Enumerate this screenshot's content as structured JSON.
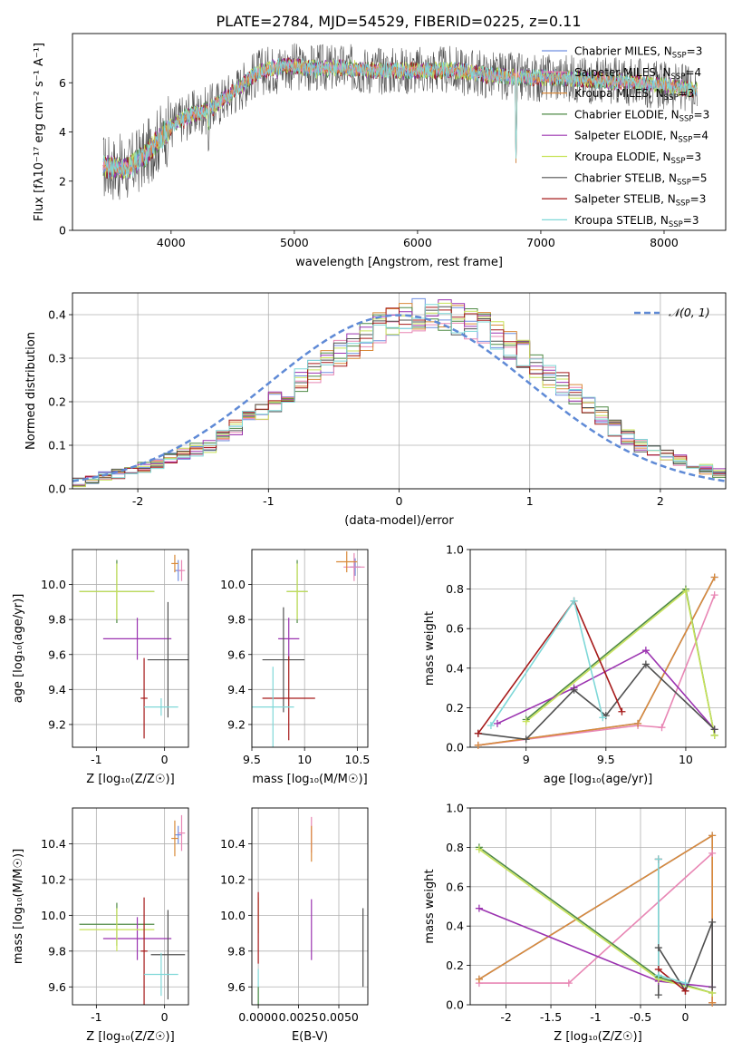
{
  "figure_title": "PLATE=2784, MJD=54529, FIBERID=0225, z=0.11",
  "colors": {
    "Chabrier MILES": "#6f8fe0",
    "Salpeter MILES": "#e886b4",
    "Kroupa MILES": "#d98a3a",
    "Chabrier ELODIE": "#4f8a45",
    "Salpeter ELODIE": "#9b33b0",
    "Kroupa ELODIE": "#c8e35a",
    "Chabrier STELIB": "#505050",
    "Salpeter STELIB": "#a61a1a",
    "Kroupa STELIB": "#7fd8d8",
    "normal": "#5f8ad6"
  },
  "chart_data": [
    {
      "id": "spectrum",
      "type": "line",
      "title": "PLATE=2784, MJD=54529, FIBERID=0225, z=0.11",
      "xlabel": "wavelength [Angstrom, rest frame]",
      "ylabel": "Flux [fλ10⁻¹⁷ erg cm⁻² s⁻¹ A⁻¹]",
      "xlim": [
        3200,
        8500
      ],
      "ylim": [
        0,
        8
      ],
      "xticks": [
        4000,
        5000,
        6000,
        7000,
        8000
      ],
      "yticks": [
        0,
        2,
        4,
        6
      ],
      "grid": false,
      "legend_position": "upper-right",
      "x_range_data": [
        3450,
        8270
      ],
      "continuum": [
        [
          3450,
          2.6
        ],
        [
          3650,
          2.5
        ],
        [
          3800,
          3.1
        ],
        [
          3950,
          4.0
        ],
        [
          4100,
          4.6
        ],
        [
          4300,
          4.9
        ],
        [
          4500,
          5.6
        ],
        [
          4700,
          6.4
        ],
        [
          4900,
          6.7
        ],
        [
          5100,
          6.6
        ],
        [
          5400,
          6.6
        ],
        [
          5700,
          6.5
        ],
        [
          6000,
          6.5
        ],
        [
          6300,
          6.5
        ],
        [
          6600,
          6.3
        ],
        [
          6900,
          6.2
        ],
        [
          7200,
          6.2
        ],
        [
          7500,
          6.1
        ],
        [
          7800,
          6.0
        ],
        [
          8000,
          5.9
        ],
        [
          8270,
          5.7
        ]
      ],
      "absorption_features": [
        [
          3934,
          0.4
        ],
        [
          3969,
          0.3
        ],
        [
          4102,
          0.4
        ],
        [
          4305,
          1.6
        ],
        [
          4340,
          0.3
        ],
        [
          4861,
          0.4
        ],
        [
          5175,
          0.3
        ],
        [
          5270,
          0.2
        ],
        [
          5890,
          0.25
        ],
        [
          6563,
          0.2
        ],
        [
          6800,
          5.0
        ]
      ],
      "series": [
        {
          "name": "Chabrier MILES, N_SSP=3"
        },
        {
          "name": "Salpeter MILES, N_SSP=4"
        },
        {
          "name": "Kroupa MILES, N_SSP=3"
        },
        {
          "name": "Chabrier ELODIE, N_SSP=3"
        },
        {
          "name": "Salpeter ELODIE, N_SSP=4"
        },
        {
          "name": "Kroupa ELODIE, N_SSP=3"
        },
        {
          "name": "Chabrier STELIB, N_SSP=5"
        },
        {
          "name": "Salpeter STELIB, N_SSP=3"
        },
        {
          "name": "Kroupa STELIB, N_SSP=3"
        }
      ]
    },
    {
      "id": "residuals",
      "type": "histogram",
      "xlabel": "(data-model)/error",
      "ylabel": "Normed distribution",
      "xlim": [
        -2.5,
        2.5
      ],
      "ylim": [
        0,
        0.45
      ],
      "xticks": [
        -2,
        -1,
        0,
        1,
        2
      ],
      "yticks": [
        0.0,
        0.1,
        0.2,
        0.3,
        0.4
      ],
      "grid": true,
      "legend_position": "upper-right",
      "legend_label": "𝒩(0, 1)",
      "bins": {
        "start": -2.5,
        "width": 0.1,
        "count": 50
      },
      "mean_density": [
        0.015,
        0.02,
        0.03,
        0.035,
        0.04,
        0.05,
        0.06,
        0.07,
        0.08,
        0.09,
        0.1,
        0.12,
        0.14,
        0.16,
        0.18,
        0.2,
        0.22,
        0.25,
        0.27,
        0.29,
        0.31,
        0.33,
        0.35,
        0.37,
        0.38,
        0.39,
        0.4,
        0.4,
        0.4,
        0.39,
        0.38,
        0.37,
        0.35,
        0.33,
        0.31,
        0.28,
        0.26,
        0.24,
        0.22,
        0.19,
        0.17,
        0.14,
        0.12,
        0.1,
        0.09,
        0.075,
        0.065,
        0.055,
        0.045,
        0.035
      ],
      "normal_curve": {
        "mu": 0,
        "sigma": 1
      }
    },
    {
      "id": "age_vs_Z",
      "type": "errorbar",
      "xlabel": "Z [log₁₀(Z/Z☉)]",
      "ylabel": "age  [log₁₀(age/yr)]",
      "xlim": [
        -1.35,
        0.35
      ],
      "ylim": [
        9.07,
        10.2
      ],
      "xticks": [
        -1,
        0
      ],
      "yticks": [
        9.2,
        9.4,
        9.6,
        9.8,
        10.0
      ],
      "grid": true,
      "points": [
        {
          "s": "Chabrier MILES",
          "x": 0.2,
          "y": 10.08,
          "xe": [
            0.05,
            0.05
          ],
          "ye": [
            0.06,
            0.06
          ]
        },
        {
          "s": "Salpeter MILES",
          "x": 0.25,
          "y": 10.08,
          "xe": [
            0.05,
            0.05
          ],
          "ye": [
            0.06,
            0.06
          ]
        },
        {
          "s": "Kroupa MILES",
          "x": 0.15,
          "y": 10.12,
          "xe": [
            0.05,
            0.05
          ],
          "ye": [
            0.05,
            0.05
          ]
        },
        {
          "s": "Chabrier ELODIE",
          "x": -0.7,
          "y": 9.96,
          "xe": [
            0.55,
            0.55
          ],
          "ye": [
            0.18,
            0.18
          ]
        },
        {
          "s": "Salpeter ELODIE",
          "x": -0.4,
          "y": 9.69,
          "xe": [
            0.5,
            0.5
          ],
          "ye": [
            0.12,
            0.12
          ]
        },
        {
          "s": "Kroupa ELODIE",
          "x": -0.7,
          "y": 9.96,
          "xe": [
            0.55,
            0.55
          ],
          "ye": [
            0.16,
            0.16
          ]
        },
        {
          "s": "Chabrier STELIB",
          "x": 0.05,
          "y": 9.57,
          "xe": [
            0.3,
            0.3
          ],
          "ye": [
            0.33,
            0.33
          ]
        },
        {
          "s": "Salpeter STELIB",
          "x": -0.3,
          "y": 9.35,
          "xe": [
            0.05,
            0.05
          ],
          "ye": [
            0.23,
            0.23
          ]
        },
        {
          "s": "Kroupa STELIB",
          "x": -0.05,
          "y": 9.3,
          "xe": [
            0.25,
            0.25
          ],
          "ye": [
            0.05,
            0.05
          ]
        }
      ]
    },
    {
      "id": "age_vs_mass",
      "type": "errorbar",
      "xlabel": "mass [log₁₀(M/M☉)]",
      "xlim": [
        9.5,
        10.6
      ],
      "ylim": [
        9.07,
        10.2
      ],
      "xticks": [
        9.5,
        10.0,
        10.5
      ],
      "yticks": [
        9.2,
        9.4,
        9.6,
        9.8,
        10.0
      ],
      "grid": true,
      "points": [
        {
          "s": "Chabrier MILES",
          "x": 10.48,
          "y": 10.1,
          "xe": [
            0.05,
            0.05
          ],
          "ye": [
            0.05,
            0.05
          ]
        },
        {
          "s": "Salpeter MILES",
          "x": 10.47,
          "y": 10.1,
          "xe": [
            0.1,
            0.1
          ],
          "ye": [
            0.08,
            0.08
          ]
        },
        {
          "s": "Kroupa MILES",
          "x": 10.4,
          "y": 10.13,
          "xe": [
            0.1,
            0.1
          ],
          "ye": [
            0.06,
            0.06
          ]
        },
        {
          "s": "Chabrier ELODIE",
          "x": 9.93,
          "y": 9.96,
          "xe": [
            0.1,
            0.1
          ],
          "ye": [
            0.18,
            0.18
          ]
        },
        {
          "s": "Salpeter ELODIE",
          "x": 9.85,
          "y": 9.69,
          "xe": [
            0.1,
            0.1
          ],
          "ye": [
            0.12,
            0.12
          ]
        },
        {
          "s": "Kroupa ELODIE",
          "x": 9.93,
          "y": 9.96,
          "xe": [
            0.1,
            0.1
          ],
          "ye": [
            0.16,
            0.16
          ]
        },
        {
          "s": "Chabrier STELIB",
          "x": 9.8,
          "y": 9.57,
          "xe": [
            0.2,
            0.2
          ],
          "ye": [
            0.3,
            0.3
          ]
        },
        {
          "s": "Salpeter STELIB",
          "x": 9.85,
          "y": 9.35,
          "xe": [
            0.25,
            0.25
          ],
          "ye": [
            0.24,
            0.24
          ]
        },
        {
          "s": "Kroupa STELIB",
          "x": 9.7,
          "y": 9.3,
          "xe": [
            0.2,
            0.2
          ],
          "ye": [
            0.23,
            0.23
          ]
        }
      ]
    },
    {
      "id": "weight_vs_age",
      "type": "line",
      "xlabel": "age  [log₁₀(age/yr)]",
      "ylabel": "mass weight",
      "xlim": [
        8.65,
        10.25
      ],
      "ylim": [
        0,
        1
      ],
      "xticks": [
        9.0,
        9.5,
        10.0
      ],
      "yticks": [
        0.0,
        0.2,
        0.4,
        0.6,
        0.8,
        1.0
      ],
      "grid": true,
      "series": [
        {
          "s": "Chabrier MILES",
          "x": [
            8.7,
            9.7,
            10.18
          ],
          "y": [
            0.01,
            0.12,
            0.86
          ]
        },
        {
          "s": "Salpeter MILES",
          "x": [
            8.7,
            9.7,
            9.85,
            10.18
          ],
          "y": [
            0.01,
            0.11,
            0.1,
            0.77
          ]
        },
        {
          "s": "Kroupa MILES",
          "x": [
            8.7,
            9.7,
            10.18
          ],
          "y": [
            0.01,
            0.12,
            0.86
          ]
        },
        {
          "s": "Chabrier ELODIE",
          "x": [
            9.0,
            10.0,
            10.18
          ],
          "y": [
            0.14,
            0.8,
            0.06
          ]
        },
        {
          "s": "Salpeter ELODIE",
          "x": [
            8.82,
            9.3,
            9.75,
            10.18
          ],
          "y": [
            0.12,
            0.3,
            0.49,
            0.09
          ]
        },
        {
          "s": "Kroupa ELODIE",
          "x": [
            9.0,
            10.0,
            10.18
          ],
          "y": [
            0.13,
            0.79,
            0.06
          ]
        },
        {
          "s": "Chabrier STELIB",
          "x": [
            8.7,
            9.0,
            9.3,
            9.5,
            9.75,
            10.18
          ],
          "y": [
            0.07,
            0.04,
            0.29,
            0.16,
            0.42,
            0.09
          ]
        },
        {
          "s": "Salpeter STELIB",
          "x": [
            8.7,
            9.3,
            9.6
          ],
          "y": [
            0.07,
            0.74,
            0.18
          ]
        },
        {
          "s": "Kroupa STELIB",
          "x": [
            8.78,
            9.3,
            9.48
          ],
          "y": [
            0.11,
            0.74,
            0.15
          ]
        }
      ]
    },
    {
      "id": "mass_vs_Z",
      "type": "errorbar",
      "xlabel": "Z [log₁₀(Z/Z☉)]",
      "ylabel": "mass [log₁₀(M/M☉)]",
      "xlim": [
        -1.35,
        0.35
      ],
      "ylim": [
        9.5,
        10.6
      ],
      "xticks": [
        -1,
        0
      ],
      "yticks": [
        9.6,
        9.8,
        10.0,
        10.2,
        10.4
      ],
      "grid": true,
      "points": [
        {
          "s": "Chabrier MILES",
          "x": 0.2,
          "y": 10.45,
          "xe": [
            0.05,
            0.05
          ],
          "ye": [
            0.05,
            0.05
          ]
        },
        {
          "s": "Salpeter MILES",
          "x": 0.25,
          "y": 10.46,
          "xe": [
            0.05,
            0.05
          ],
          "ye": [
            0.1,
            0.1
          ]
        },
        {
          "s": "Kroupa MILES",
          "x": 0.15,
          "y": 10.43,
          "xe": [
            0.05,
            0.05
          ],
          "ye": [
            0.1,
            0.1
          ]
        },
        {
          "s": "Chabrier ELODIE",
          "x": -0.7,
          "y": 9.95,
          "xe": [
            0.55,
            0.55
          ],
          "ye": [
            0.12,
            0.12
          ]
        },
        {
          "s": "Salpeter ELODIE",
          "x": -0.4,
          "y": 9.87,
          "xe": [
            0.5,
            0.5
          ],
          "ye": [
            0.12,
            0.12
          ]
        },
        {
          "s": "Kroupa ELODIE",
          "x": -0.7,
          "y": 9.92,
          "xe": [
            0.55,
            0.55
          ],
          "ye": [
            0.12,
            0.12
          ]
        },
        {
          "s": "Chabrier STELIB",
          "x": 0.05,
          "y": 9.78,
          "xe": [
            0.25,
            0.25
          ],
          "ye": [
            0.25,
            0.25
          ]
        },
        {
          "s": "Salpeter STELIB",
          "x": -0.3,
          "y": 9.8,
          "xe": [
            0.05,
            0.05
          ],
          "ye": [
            0.3,
            0.3
          ]
        },
        {
          "s": "Kroupa STELIB",
          "x": -0.05,
          "y": 9.67,
          "xe": [
            0.25,
            0.25
          ],
          "ye": [
            0.12,
            0.12
          ]
        }
      ]
    },
    {
      "id": "mass_vs_ebv",
      "type": "errorbar",
      "xlabel": "E(B-V)",
      "xlim": [
        -0.0004,
        0.0068
      ],
      "ylim": [
        9.5,
        10.6
      ],
      "xticks": [
        0.0,
        0.0025,
        0.005
      ],
      "xtick_labels": [
        "0.0000",
        "0.0025",
        "0.0050"
      ],
      "yticks": [
        9.6,
        9.8,
        10.0,
        10.2,
        10.4
      ],
      "grid": true,
      "points": [
        {
          "s": "Salpeter MILES",
          "x": 0.0033,
          "y": 10.45,
          "xe": [
            0,
            0
          ],
          "ye": [
            0.1,
            0.1
          ]
        },
        {
          "s": "Kroupa MILES",
          "x": 0.0033,
          "y": 10.4,
          "xe": [
            0,
            0
          ],
          "ye": [
            0.1,
            0.1
          ]
        },
        {
          "s": "Kroupa ELODIE",
          "x": 0.0,
          "y": 10.0,
          "xe": [
            0,
            0
          ],
          "ye": [
            0.1,
            0.1
          ]
        },
        {
          "s": "Salpeter ELODIE",
          "x": 0.0033,
          "y": 9.92,
          "xe": [
            0,
            0
          ],
          "ye": [
            0.17,
            0.17
          ]
        },
        {
          "s": "Chabrier STELIB",
          "x": 0.0065,
          "y": 9.82,
          "xe": [
            0,
            0
          ],
          "ye": [
            0.22,
            0.22
          ]
        },
        {
          "s": "Salpeter STELIB",
          "x": 0.0,
          "y": 9.93,
          "xe": [
            0,
            0
          ],
          "ye": [
            0.2,
            0.2
          ]
        },
        {
          "s": "Kroupa STELIB",
          "x": 0.0,
          "y": 9.6,
          "xe": [
            0,
            0
          ],
          "ye": [
            0.1,
            0.1
          ]
        },
        {
          "s": "Chabrier ELODIE",
          "x": 0.0,
          "y": 9.55,
          "xe": [
            0,
            0
          ],
          "ye": [
            0.05,
            0.05
          ]
        }
      ]
    },
    {
      "id": "weight_vs_Z",
      "type": "line",
      "xlabel": "Z [log₁₀(Z/Z☉)]",
      "ylabel": "mass weight",
      "xlim": [
        -2.4,
        0.45
      ],
      "ylim": [
        0,
        1
      ],
      "xticks": [
        -2.0,
        -1.5,
        -1.0,
        -0.5,
        0.0
      ],
      "yticks": [
        0.0,
        0.2,
        0.4,
        0.6,
        0.8,
        1.0
      ],
      "grid": true,
      "series": [
        {
          "s": "Chabrier MILES",
          "x": [
            -2.3,
            0.3,
            0.3
          ],
          "y": [
            0.13,
            0.86,
            0.01
          ]
        },
        {
          "s": "Salpeter MILES",
          "x": [
            -2.3,
            -1.3,
            0.3,
            0.3
          ],
          "y": [
            0.11,
            0.11,
            0.77,
            0.01
          ]
        },
        {
          "s": "Kroupa MILES",
          "x": [
            -2.3,
            0.3,
            0.3
          ],
          "y": [
            0.13,
            0.86,
            0.01
          ]
        },
        {
          "s": "Chabrier ELODIE",
          "x": [
            -2.3,
            -0.3,
            0.3
          ],
          "y": [
            0.8,
            0.14,
            0.06
          ]
        },
        {
          "s": "Salpeter ELODIE",
          "x": [
            -2.3,
            -0.3,
            0.3
          ],
          "y": [
            0.49,
            0.12,
            0.09
          ]
        },
        {
          "s": "Kroupa ELODIE",
          "x": [
            -2.3,
            -0.3,
            0.3
          ],
          "y": [
            0.79,
            0.13,
            0.06
          ]
        },
        {
          "s": "Chabrier STELIB",
          "x": [
            -0.3,
            -0.3,
            0.0,
            0.3,
            0.3
          ],
          "y": [
            0.05,
            0.29,
            0.07,
            0.42,
            0.09
          ]
        },
        {
          "s": "Salpeter STELIB",
          "x": [
            -0.3,
            -0.3,
            0.0
          ],
          "y": [
            0.74,
            0.18,
            0.07
          ]
        },
        {
          "s": "Kroupa STELIB",
          "x": [
            -0.3,
            -0.3,
            0.0
          ],
          "y": [
            0.74,
            0.15,
            0.11
          ]
        }
      ]
    }
  ]
}
